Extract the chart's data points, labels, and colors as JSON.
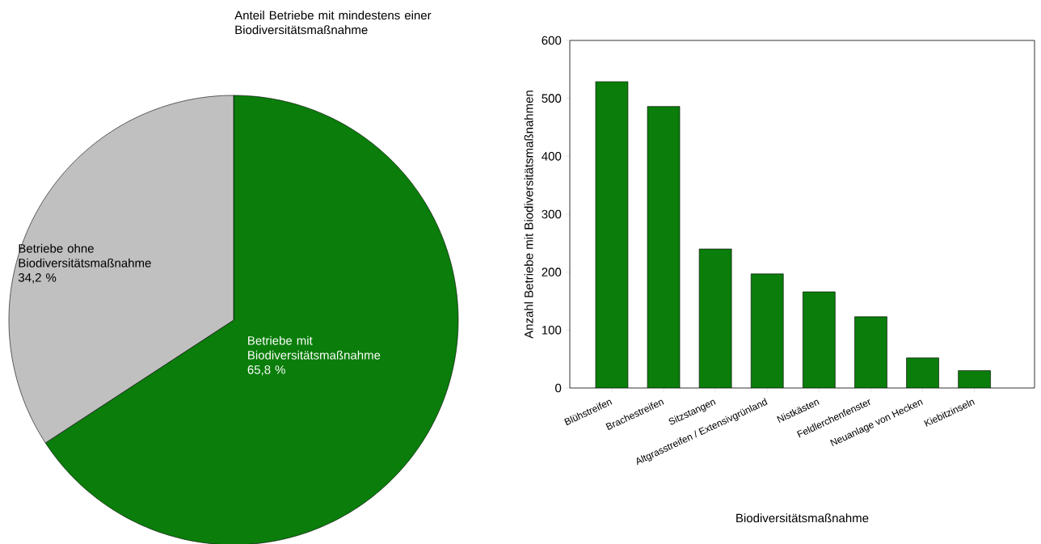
{
  "chart_data": [
    {
      "type": "pie",
      "title": "Anteil Betriebe mit mindestens einer Biodiversitätsmaßnahme",
      "categories": [
        "Betriebe mit Biodiversitätsmaßnahme",
        "Betriebe ohne Biodiversitätsmaßnahme"
      ],
      "values": [
        65.8,
        34.2
      ],
      "value_labels": [
        "65,8 %",
        "34,2 %"
      ],
      "colors": [
        "#0a7d0a",
        "#c0c0c0"
      ]
    },
    {
      "type": "bar",
      "categories": [
        "Blühstreifen",
        "Brachestreifen",
        "Sitzstangen",
        "Altgrasstreifen / Extensivgrünland",
        "Nistkästen",
        "Feldlerchenfenster",
        "Neuanlage von Hecken",
        "Kiebitzinseln"
      ],
      "values": [
        529,
        486,
        240,
        197,
        166,
        123,
        52,
        30
      ],
      "color": "#0a7d0a",
      "xlabel": "Biodiversitätsmaßnahme",
      "ylabel": "Anzahl Betriebe mit Biodiversitätsmaßnahmen",
      "ylim": [
        0,
        600
      ],
      "yticks": [
        0,
        100,
        200,
        300,
        400,
        500,
        600
      ]
    }
  ]
}
